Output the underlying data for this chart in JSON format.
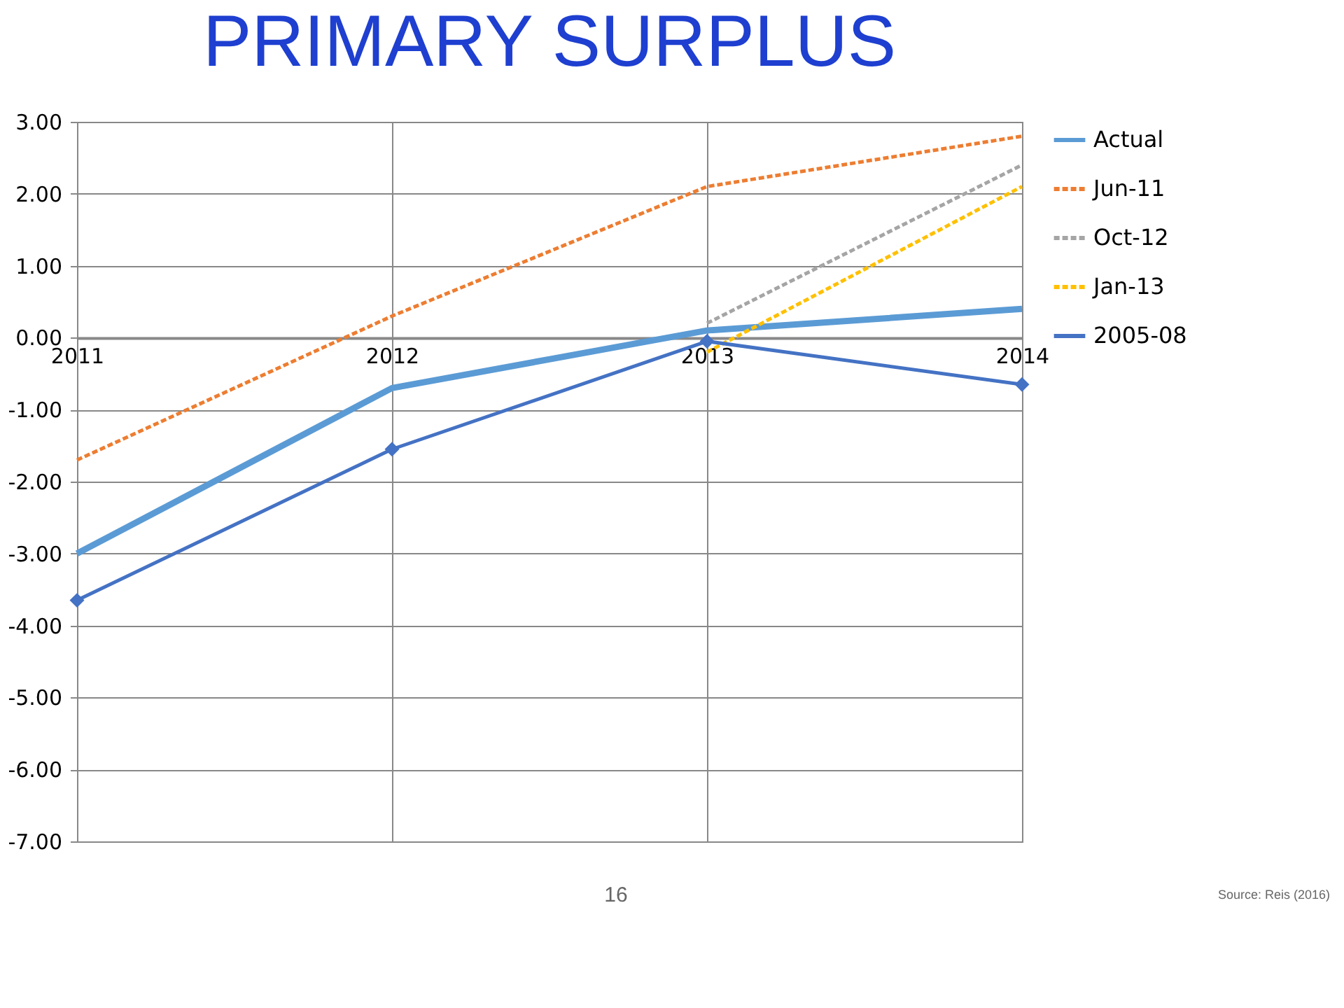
{
  "chart_data": {
    "type": "line",
    "title": "PRIMARY SURPLUS",
    "categories": [
      "2011",
      "2012",
      "2013",
      "2014"
    ],
    "series": [
      {
        "name": "Actual",
        "color": "#5b9bd5",
        "values": [
          -3.0,
          -0.7,
          0.1,
          0.4
        ]
      },
      {
        "name": "Jun-11",
        "color": "#ed7d31",
        "line_style": "dashed",
        "values": [
          -1.7,
          0.3,
          2.1,
          2.8
        ]
      },
      {
        "name": "Oct-12",
        "color": "#a5a5a5",
        "line_style": "dashed",
        "values": [
          null,
          null,
          0.2,
          2.4
        ]
      },
      {
        "name": "Jan-13",
        "color": "#ffc000",
        "line_style": "dashed",
        "values": [
          null,
          null,
          -0.2,
          2.1
        ]
      },
      {
        "name": "2005-08",
        "color": "#4472c4",
        "marker": "diamond",
        "values": [
          -3.65,
          -1.55,
          -0.05,
          -0.65
        ]
      }
    ],
    "ylim": [
      -7,
      3
    ],
    "yticks": [
      {
        "value": 3,
        "label": "3.00"
      },
      {
        "value": 2,
        "label": "2.00"
      },
      {
        "value": 1,
        "label": "1.00"
      },
      {
        "value": 0,
        "label": "0.00"
      },
      {
        "value": -1,
        "label": "-1.00"
      },
      {
        "value": -2,
        "label": "-2.00"
      },
      {
        "value": -3,
        "label": "-3.00"
      },
      {
        "value": -4,
        "label": "-4.00"
      },
      {
        "value": -5,
        "label": "-5.00"
      },
      {
        "value": -6,
        "label": "-6.00"
      },
      {
        "value": -7,
        "label": "-7.00"
      }
    ],
    "grid": true,
    "legend": "right",
    "line_style": "solid",
    "annotations": [
      "16",
      "Source: Reis (2016)"
    ]
  }
}
